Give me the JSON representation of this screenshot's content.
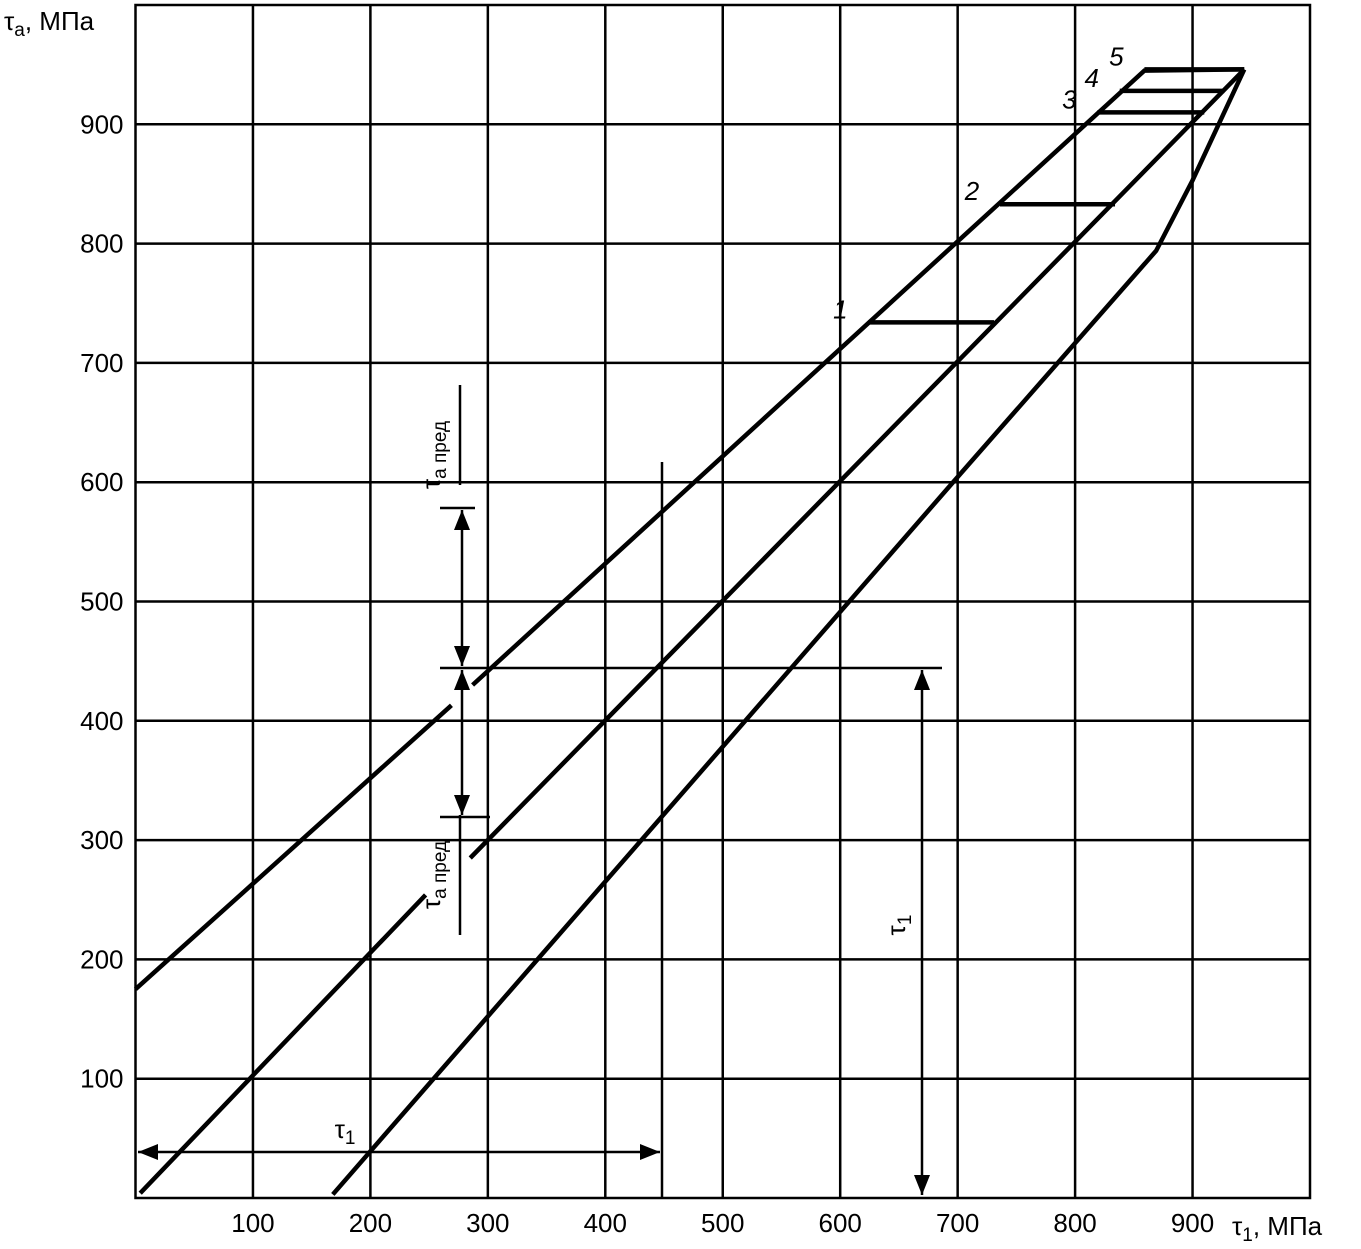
{
  "chart_data": {
    "type": "line",
    "y_label": {
      "symbol": "τ",
      "subscript": "a",
      "unit": ", МПа"
    },
    "x_label": {
      "symbol": "τ",
      "subscript": "1",
      "unit": ", МПа"
    },
    "xlim": [
      0,
      1000
    ],
    "ylim": [
      0,
      1000
    ],
    "xticks": [
      100,
      200,
      300,
      400,
      500,
      600,
      700,
      800,
      900
    ],
    "yticks": [
      100,
      200,
      300,
      400,
      500,
      600,
      700,
      800,
      900
    ],
    "grid": true,
    "series": [
      {
        "color": "#000000",
        "x": [
          0,
          269,
          null,
          287,
          859,
          944
        ],
        "values": [
          175,
          413,
          null,
          430,
          945,
          946
        ]
      },
      {
        "color": "#000000",
        "x": [
          4,
          247,
          null,
          285,
          944
        ],
        "values": [
          4,
          254,
          null,
          285,
          946
        ]
      },
      {
        "color": "#000000",
        "x": [
          168,
          697,
          869,
          900,
          944
        ],
        "values": [
          3,
          601,
          794,
          853,
          946
        ]
      },
      {
        "name": "1",
        "color": "#000000",
        "x": [
          624,
          731
        ],
        "values": [
          734,
          734
        ]
      },
      {
        "name": "2",
        "color": "#000000",
        "x": [
          736,
          834
        ],
        "values": [
          833,
          833
        ]
      },
      {
        "name": "3",
        "color": "#000000",
        "x": [
          819,
          910
        ],
        "values": [
          910,
          910
        ]
      },
      {
        "name": "4",
        "color": "#000000",
        "x": [
          838,
          927
        ],
        "values": [
          928,
          928
        ]
      },
      {
        "name": "5",
        "color": "#000000",
        "x": [
          859,
          944
        ],
        "values": [
          946,
          946
        ]
      }
    ],
    "annotations": [
      {
        "symbol": "τ",
        "subscript": "a пред"
      },
      {
        "symbol": "τ",
        "subscript": "a пред"
      },
      {
        "symbol": "τ",
        "subscript": "1"
      },
      {
        "symbol": "τ",
        "subscript": "1"
      }
    ]
  }
}
